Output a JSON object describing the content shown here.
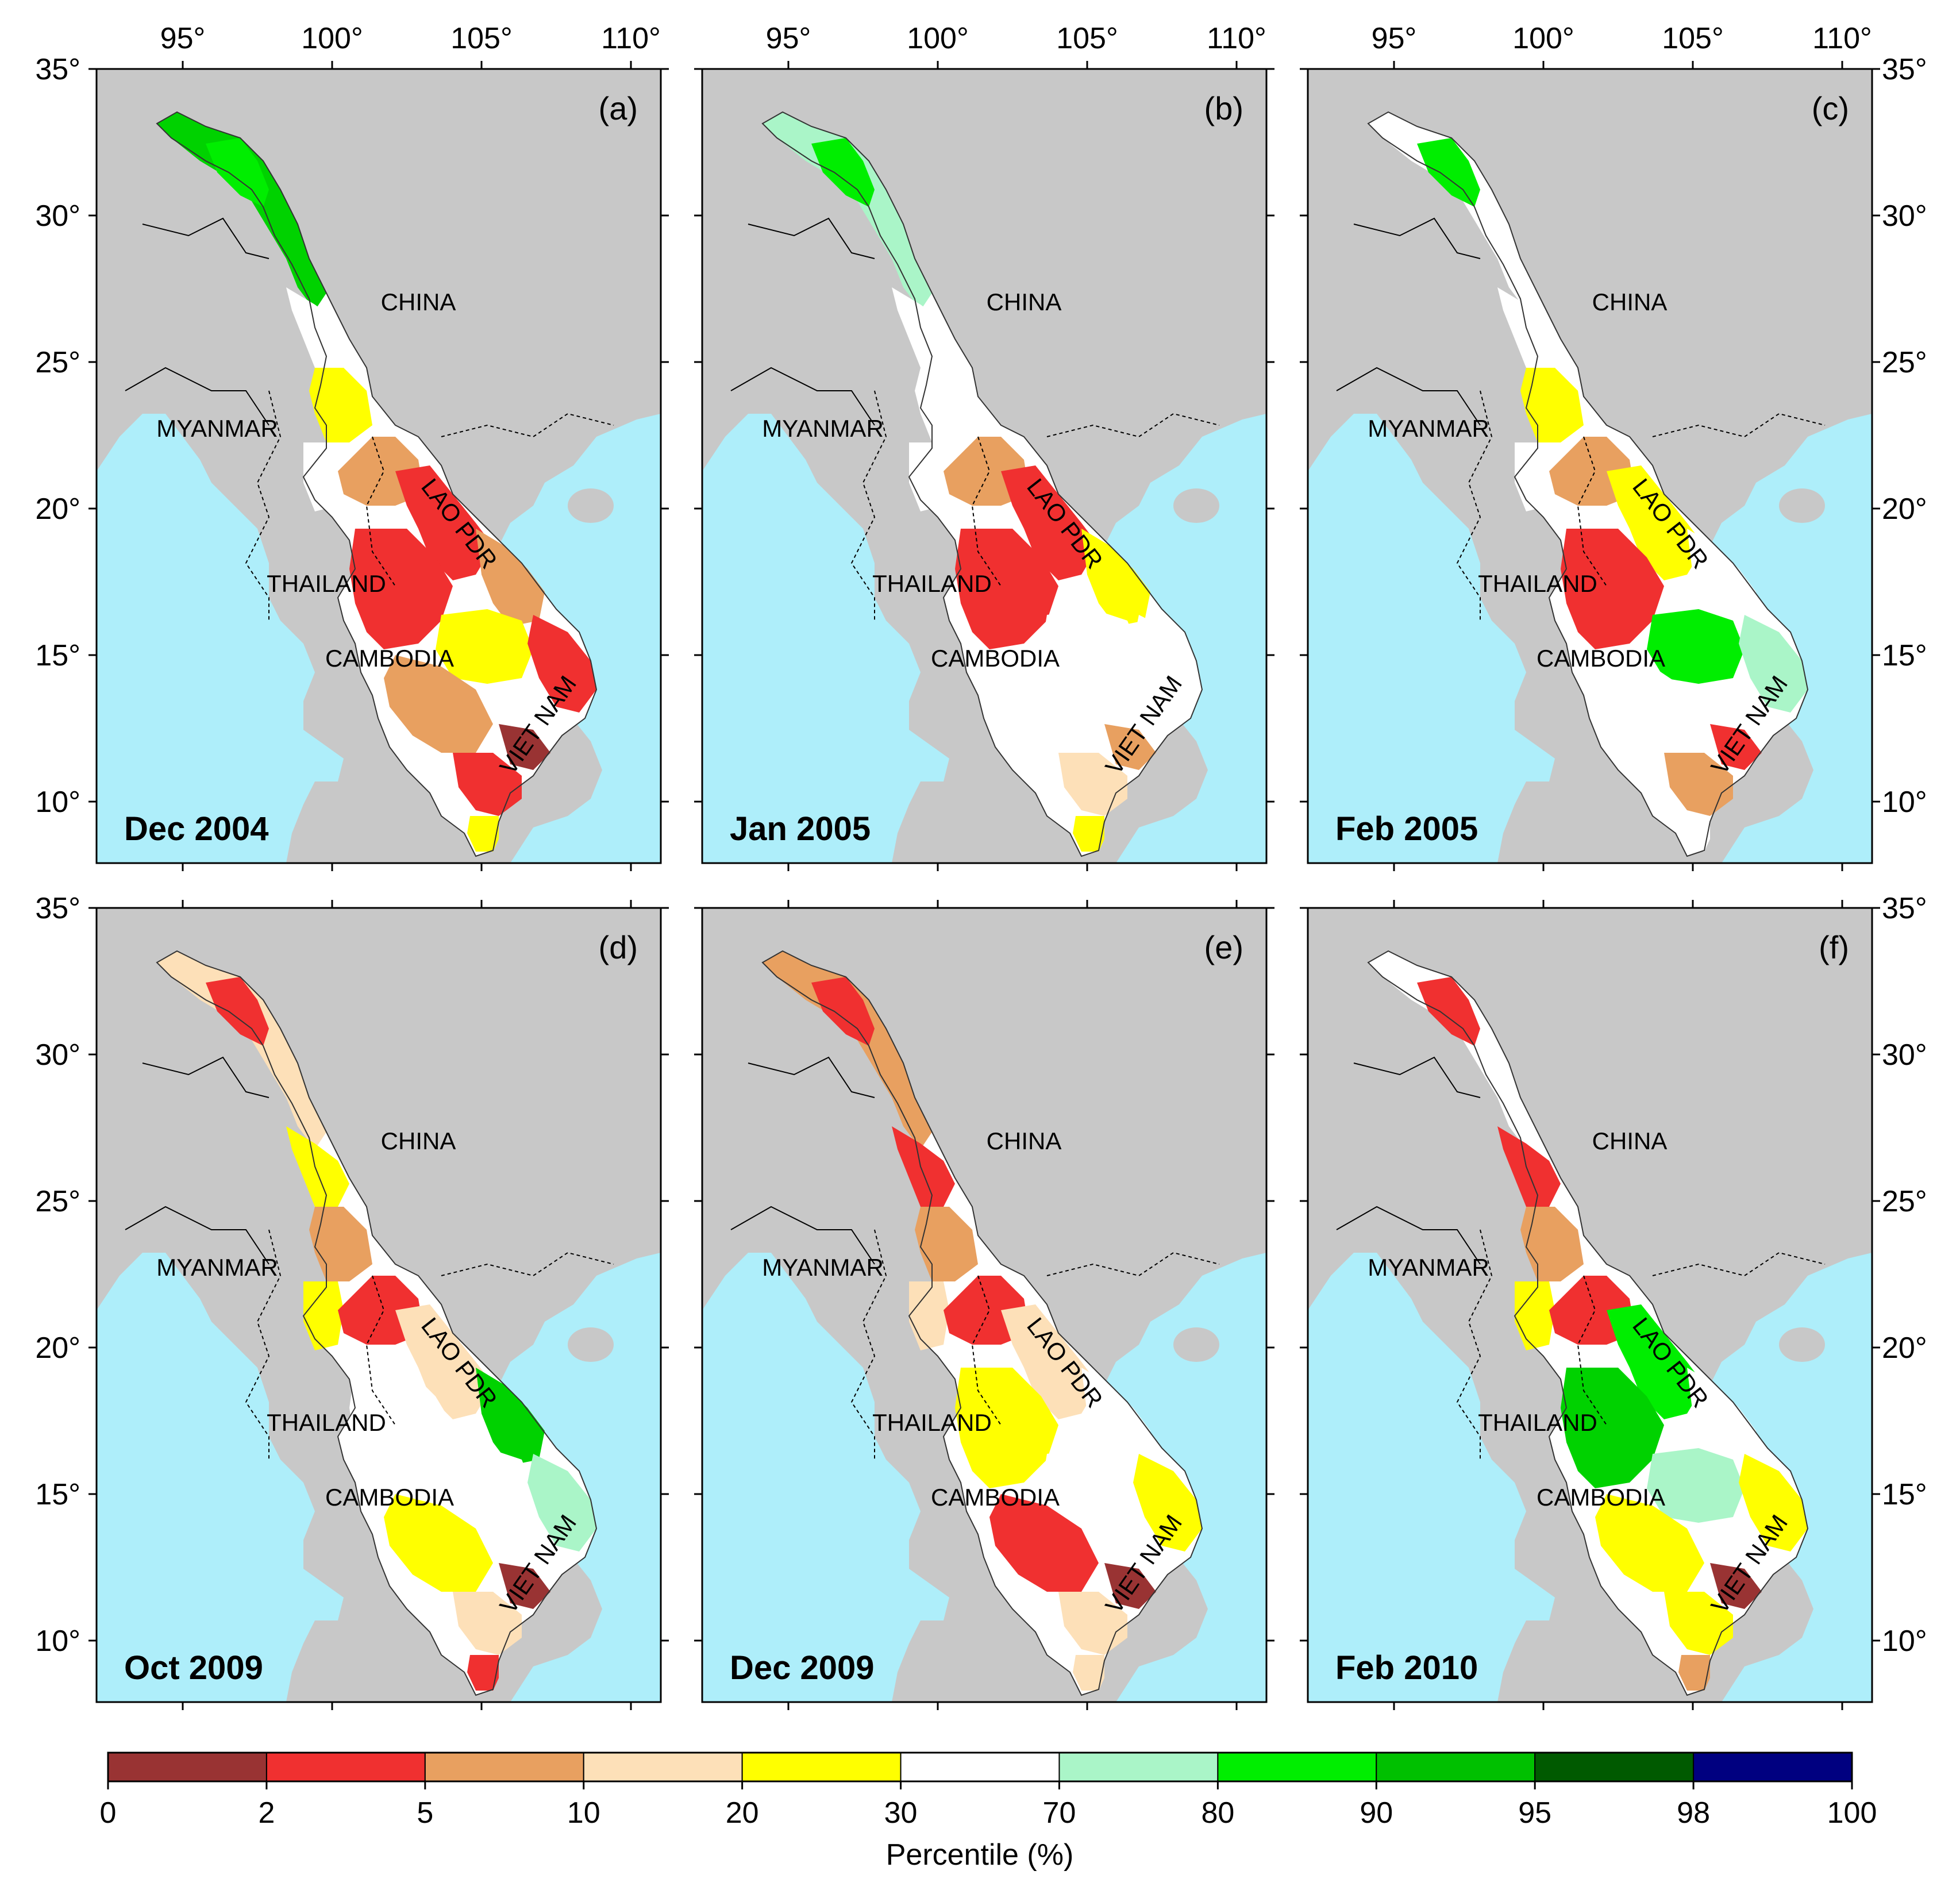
{
  "figure": {
    "colors": {
      "land": "#c8c8c8",
      "ocean": "#aeeefa",
      "border": "#000000"
    },
    "longitude_ticks": [
      "95°",
      "100°",
      "105°",
      "110°"
    ],
    "latitude_ticks": [
      "35°",
      "30°",
      "25°",
      "20°",
      "15°",
      "10°"
    ],
    "country_labels": [
      "CHINA",
      "MYANMAR",
      "LAO PDR",
      "THAILAND",
      "CAMBODIA",
      "VIET NAM"
    ],
    "panels": [
      {
        "label": "(a)",
        "date": "Dec 2004",
        "zones": {
          "tibet_source": "#00ee00",
          "upper_china": "#00d200",
          "yunnan": "#ffffff",
          "north_laos": "#ffff00",
          "west_upper": "#ffffff",
          "north_thai": "#e8a060",
          "central_laos": "#f03030",
          "south_laos": "#e8a060",
          "thai_plateau": "#f03030",
          "cambodia_n": "#ffff00",
          "cambodia_s": "#e8a060",
          "vietnam_hl": "#f03030",
          "delta": "#f03030",
          "delta_tip": "#ffff00",
          "hotspot": "#993333"
        }
      },
      {
        "label": "(b)",
        "date": "Jan 2005",
        "zones": {
          "tibet_source": "#00ee00",
          "upper_china": "#aaf5c8",
          "yunnan": "#ffffff",
          "north_laos": "#ffffff",
          "west_upper": "#ffffff",
          "north_thai": "#e8a060",
          "central_laos": "#f03030",
          "south_laos": "#ffff00",
          "thai_plateau": "#f03030",
          "cambodia_n": "#ffffff",
          "cambodia_s": "#ffffff",
          "vietnam_hl": "#ffffff",
          "delta": "#fde0b8",
          "delta_tip": "#ffff00",
          "hotspot": "#e8a060"
        }
      },
      {
        "label": "(c)",
        "date": "Feb 2005",
        "zones": {
          "tibet_source": "#00ee00",
          "upper_china": "#ffffff",
          "yunnan": "#ffffff",
          "north_laos": "#ffff00",
          "west_upper": "#ffffff",
          "north_thai": "#e8a060",
          "central_laos": "#ffff00",
          "south_laos": "#ffffff",
          "thai_plateau": "#f03030",
          "cambodia_n": "#00ee00",
          "cambodia_s": "#ffffff",
          "vietnam_hl": "#aaf5c8",
          "delta": "#e8a060",
          "delta_tip": "#ffffff",
          "hotspot": "#f03030"
        }
      },
      {
        "label": "(d)",
        "date": "Oct 2009",
        "zones": {
          "tibet_source": "#f03030",
          "upper_china": "#fde0b8",
          "yunnan": "#ffff00",
          "north_laos": "#e8a060",
          "west_upper": "#ffff00",
          "north_thai": "#f03030",
          "central_laos": "#fde0b8",
          "south_laos": "#00d200",
          "thai_plateau": "#ffffff",
          "cambodia_n": "#ffffff",
          "cambodia_s": "#ffff00",
          "vietnam_hl": "#aaf5c8",
          "delta": "#fde0b8",
          "delta_tip": "#f03030",
          "hotspot": "#993333"
        }
      },
      {
        "label": "(e)",
        "date": "Dec 2009",
        "zones": {
          "tibet_source": "#f03030",
          "upper_china": "#e8a060",
          "yunnan": "#f03030",
          "north_laos": "#e8a060",
          "west_upper": "#fde0b8",
          "north_thai": "#f03030",
          "central_laos": "#fde0b8",
          "south_laos": "#ffffff",
          "thai_plateau": "#ffff00",
          "cambodia_n": "#ffffff",
          "cambodia_s": "#f03030",
          "vietnam_hl": "#ffff00",
          "delta": "#fde0b8",
          "delta_tip": "#fde0b8",
          "hotspot": "#993333"
        }
      },
      {
        "label": "(f)",
        "date": "Feb 2010",
        "zones": {
          "tibet_source": "#f03030",
          "upper_china": "#ffffff",
          "yunnan": "#f03030",
          "north_laos": "#e8a060",
          "west_upper": "#ffff00",
          "north_thai": "#f03030",
          "central_laos": "#00ee00",
          "south_laos": "#ffffff",
          "thai_plateau": "#00d200",
          "cambodia_n": "#aaf5c8",
          "cambodia_s": "#ffff00",
          "vietnam_hl": "#ffff00",
          "delta": "#ffff00",
          "delta_tip": "#e8a060",
          "hotspot": "#993333"
        }
      }
    ],
    "colorbar": {
      "title": "Percentile (%)",
      "ticks": [
        "0",
        "2",
        "5",
        "10",
        "20",
        "30",
        "70",
        "80",
        "90",
        "95",
        "98",
        "100"
      ],
      "colors": [
        "#993333",
        "#f03030",
        "#e8a060",
        "#fde0b8",
        "#ffff00",
        "#ffffff",
        "#aaf5c8",
        "#00ee00",
        "#00c000",
        "#005a00",
        "#000080"
      ]
    }
  }
}
